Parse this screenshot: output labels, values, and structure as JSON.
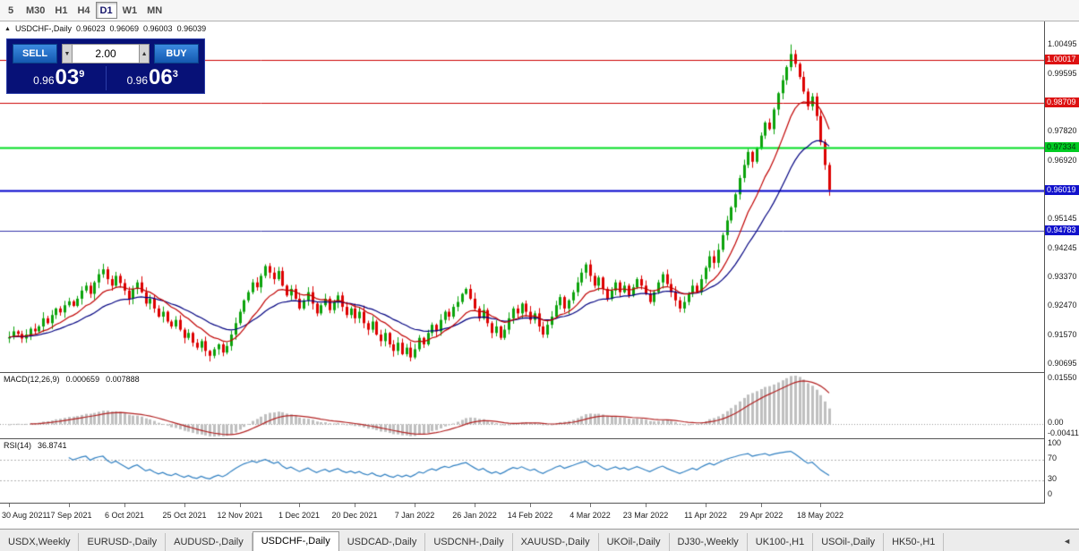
{
  "toolbar": {
    "timeframes": [
      {
        "label": "5",
        "active": false
      },
      {
        "label": "M30",
        "active": false
      },
      {
        "label": "H1",
        "active": false
      },
      {
        "label": "H4",
        "active": false
      },
      {
        "label": "D1",
        "active": true
      },
      {
        "label": "W1",
        "active": false
      },
      {
        "label": "MN",
        "active": false
      }
    ]
  },
  "icons": {
    "panel_toggle": "▲",
    "vol_down": "▼",
    "vol_up": "▲",
    "tab_scroll": "◄"
  },
  "chart_header": {
    "symbol": "USDCHF-,Daily",
    "open": "0.96023",
    "high": "0.96069",
    "low": "0.96003",
    "close": "0.96039"
  },
  "trade_panel": {
    "sell_label": "SELL",
    "buy_label": "BUY",
    "volume": "2.00",
    "bid_small": "0.96",
    "bid_big": "03",
    "bid_sup": "9",
    "ask_small": "0.96",
    "ask_big": "06",
    "ask_sup": "3"
  },
  "macd_panel": {
    "label": "MACD(12,26,9)",
    "main_value": "0.000659",
    "signal_value": "0.007888"
  },
  "rsi_panel": {
    "label": "RSI(14)",
    "value": "36.8741"
  },
  "price_axis": {
    "labels": [
      {
        "text": "1.00495",
        "value": 1.00495
      },
      {
        "text": "1.00017",
        "value": 1.00017,
        "bg": "#dd1111",
        "fg": "#ffffff"
      },
      {
        "text": "0.99595",
        "value": 0.99595
      },
      {
        "text": "0.98709",
        "value": 0.98709,
        "bg": "#dd1111",
        "fg": "#ffffff"
      },
      {
        "text": "0.97820",
        "value": 0.9782
      },
      {
        "text": "0.97334",
        "value": 0.97334,
        "bg": "#00cc22",
        "fg": "#00330a"
      },
      {
        "text": "0.96920",
        "value": 0.9692
      },
      {
        "text": "0.96019",
        "value": 0.96019,
        "bg": "#1111cc",
        "fg": "#ffffff"
      },
      {
        "text": "0.95145",
        "value": 0.95145
      },
      {
        "text": "0.94783",
        "value": 0.94783,
        "bg": "#1111cc",
        "fg": "#ffffff"
      },
      {
        "text": "0.94245",
        "value": 0.94245
      },
      {
        "text": "0.93370",
        "value": 0.9337
      },
      {
        "text": "0.92470",
        "value": 0.9247
      },
      {
        "text": "0.91570",
        "value": 0.9157
      },
      {
        "text": "0.90695",
        "value": 0.90695
      }
    ]
  },
  "tab_bar": {
    "tabs": [
      {
        "label": "USDX,Weekly",
        "active": false
      },
      {
        "label": "EURUSD-,Daily",
        "active": false
      },
      {
        "label": "AUDUSD-,Daily",
        "active": false
      },
      {
        "label": "USDCHF-,Daily",
        "active": true
      },
      {
        "label": "USDCAD-,Daily",
        "active": false
      },
      {
        "label": "USDCNH-,Daily",
        "active": false
      },
      {
        "label": "XAUUSD-,Daily",
        "active": false
      },
      {
        "label": "UKOil-,Daily",
        "active": false
      },
      {
        "label": "DJ30-,Weekly",
        "active": false
      },
      {
        "label": "UK100-,H1",
        "active": false
      },
      {
        "label": "USOil-,Daily",
        "active": false
      },
      {
        "label": "HK50-,H1",
        "active": false
      }
    ]
  },
  "chart_data": {
    "type": "candlestick",
    "title": "USDCHF-,Daily",
    "ohlc_current": {
      "open": 0.96023,
      "high": 0.96069,
      "low": 0.96003,
      "close": 0.96039
    },
    "y_domain": [
      0.9045,
      1.012
    ],
    "first_open": 0.9148,
    "peak_high": 1.00495,
    "trough_low": 0.9078,
    "closes": [
      0.9152,
      0.917,
      0.9162,
      0.9148,
      0.916,
      0.9178,
      0.917,
      0.9185,
      0.921,
      0.9195,
      0.922,
      0.924,
      0.9228,
      0.925,
      0.9262,
      0.9248,
      0.927,
      0.9295,
      0.931,
      0.9285,
      0.932,
      0.9345,
      0.936,
      0.933,
      0.931,
      0.934,
      0.9318,
      0.9295,
      0.927,
      0.93,
      0.932,
      0.929,
      0.9255,
      0.927,
      0.924,
      0.9215,
      0.923,
      0.92,
      0.9185,
      0.9205,
      0.9175,
      0.915,
      0.9165,
      0.9135,
      0.912,
      0.914,
      0.911,
      0.9095,
      0.9115,
      0.913,
      0.9105,
      0.9125,
      0.916,
      0.9195,
      0.923,
      0.9265,
      0.929,
      0.932,
      0.9305,
      0.934,
      0.937,
      0.935,
      0.933,
      0.9355,
      0.931,
      0.928,
      0.93,
      0.927,
      0.924,
      0.9265,
      0.929,
      0.9255,
      0.9225,
      0.925,
      0.927,
      0.9235,
      0.926,
      0.928,
      0.9245,
      0.922,
      0.924,
      0.921,
      0.923,
      0.9195,
      0.9175,
      0.92,
      0.916,
      0.914,
      0.9165,
      0.913,
      0.911,
      0.9135,
      0.91,
      0.912,
      0.909,
      0.9115,
      0.915,
      0.913,
      0.9165,
      0.919,
      0.917,
      0.9205,
      0.923,
      0.9215,
      0.9245,
      0.926,
      0.9285,
      0.93,
      0.927,
      0.924,
      0.921,
      0.9235,
      0.9195,
      0.9165,
      0.9185,
      0.915,
      0.9175,
      0.921,
      0.924,
      0.9225,
      0.9255,
      0.923,
      0.9205,
      0.9225,
      0.9185,
      0.916,
      0.919,
      0.9215,
      0.925,
      0.9275,
      0.924,
      0.9265,
      0.929,
      0.932,
      0.935,
      0.9375,
      0.934,
      0.931,
      0.9335,
      0.93,
      0.927,
      0.9295,
      0.932,
      0.929,
      0.931,
      0.928,
      0.9305,
      0.933,
      0.931,
      0.9285,
      0.926,
      0.929,
      0.932,
      0.9345,
      0.9315,
      0.929,
      0.9265,
      0.924,
      0.926,
      0.9285,
      0.931,
      0.929,
      0.933,
      0.9365,
      0.94,
      0.938,
      0.942,
      0.9465,
      0.951,
      0.955,
      0.959,
      0.964,
      0.968,
      0.972,
      0.969,
      0.973,
      0.977,
      0.981,
      0.979,
      0.985,
      0.99,
      0.994,
      0.998,
      1.002,
      0.999,
      0.995,
      0.9905,
      0.986,
      0.989,
      0.983,
      0.975,
      0.968,
      0.96039
    ],
    "x_tick_labels": [
      "30 Aug 2021",
      "17 Sep 2021",
      "6 Oct 2021",
      "25 Oct 2021",
      "12 Nov 2021",
      "1 Dec 2021",
      "20 Dec 2021",
      "7 Jan 2022",
      "26 Jan 2022",
      "14 Feb 2022",
      "4 Mar 2022",
      "23 Mar 2022",
      "11 Apr 2022",
      "29 Apr 2022",
      "18 May 2022"
    ],
    "overlays": [
      {
        "type": "ema",
        "period": 12,
        "color": "#c00000"
      },
      {
        "type": "ema",
        "period": 26,
        "color": "#000080"
      }
    ],
    "hlines": [
      {
        "value": 1.00017,
        "color": "#cc0000",
        "width": 1
      },
      {
        "value": 0.98709,
        "color": "#cc0000",
        "width": 1
      },
      {
        "value": 0.97334,
        "color": "#00dd22",
        "width": 2
      },
      {
        "value": 0.96019,
        "color": "#0000cc",
        "width": 2
      },
      {
        "value": 0.94783,
        "color": "#3333aa",
        "width": 1
      }
    ],
    "indicators": {
      "macd": {
        "fast": 12,
        "slow": 26,
        "signal": 9,
        "current_main": 0.000659,
        "current_signal": 0.007888,
        "axis_labels": [
          {
            "text": "0.01550",
            "value": 0.0155
          },
          {
            "text": "0.00",
            "value": 0
          },
          {
            "text": "-0.00411",
            "value": -0.00411
          }
        ]
      },
      "rsi": {
        "period": 14,
        "current": 36.8741,
        "levels": [
          70,
          30
        ],
        "axis_labels": [
          {
            "text": "100",
            "value": 100
          },
          {
            "text": "70",
            "value": 70
          },
          {
            "text": "30",
            "value": 30
          },
          {
            "text": "0",
            "value": 0
          }
        ]
      }
    },
    "colors": {
      "bull": "#0ca30c",
      "bear": "#dd0000",
      "ma_fast": "#c00000",
      "ma_slow": "#000080",
      "macd_hist": "#bfbfbf",
      "macd_signal": "#b22222",
      "rsi_line": "#2f7fc1"
    }
  }
}
